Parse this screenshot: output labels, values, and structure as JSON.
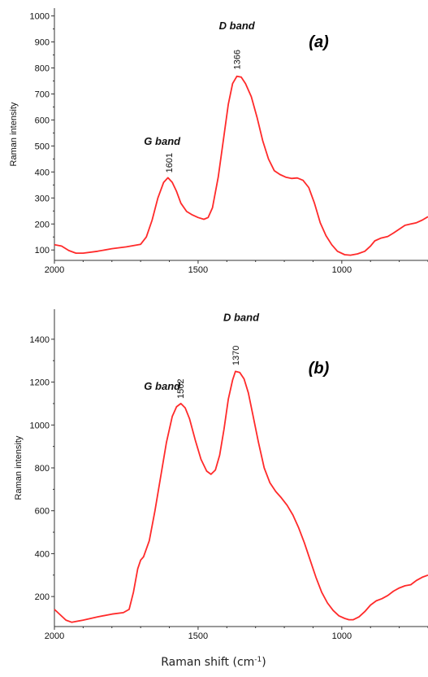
{
  "chart_data": [
    {
      "type": "line",
      "panel_label": "(a)",
      "ylabel": "Raman intensity",
      "xlim": [
        2000,
        700
      ],
      "ylim": [
        60,
        1030
      ],
      "x_ticks": [
        2000,
        1500,
        1000
      ],
      "y_ticks": [
        100,
        200,
        300,
        400,
        500,
        600,
        700,
        800,
        900,
        1000
      ],
      "annotations": [
        {
          "text": "G band",
          "x": 1625,
          "y": 505
        },
        {
          "text": "D band",
          "x": 1365,
          "y": 948
        },
        {
          "text": "(a)",
          "x": 1080,
          "y": 880
        },
        {
          "text": "1601",
          "x": 1601,
          "y": 378
        },
        {
          "text": "1366",
          "x": 1366,
          "y": 775
        }
      ],
      "series": [
        {
          "x": [
            2000,
            1975,
            1950,
            1925,
            1900,
            1850,
            1800,
            1750,
            1700,
            1680,
            1660,
            1640,
            1620,
            1605,
            1590,
            1575,
            1560,
            1540,
            1520,
            1500,
            1480,
            1465,
            1450,
            1430,
            1410,
            1395,
            1380,
            1365,
            1350,
            1335,
            1315,
            1295,
            1275,
            1255,
            1235,
            1215,
            1195,
            1175,
            1155,
            1135,
            1115,
            1095,
            1075,
            1055,
            1035,
            1015,
            990,
            970,
            945,
            920,
            900,
            885,
            865,
            840,
            820,
            800,
            780,
            760,
            740,
            720,
            700
          ],
          "y": [
            120,
            115,
            98,
            88,
            88,
            95,
            105,
            112,
            122,
            150,
            215,
            300,
            360,
            378,
            360,
            325,
            280,
            248,
            235,
            225,
            218,
            225,
            262,
            380,
            540,
            660,
            740,
            768,
            765,
            740,
            690,
            610,
            520,
            450,
            405,
            390,
            380,
            375,
            377,
            368,
            340,
            280,
            205,
            155,
            120,
            95,
            82,
            80,
            85,
            95,
            115,
            135,
            145,
            152,
            165,
            180,
            195,
            200,
            205,
            215,
            228
          ]
        }
      ]
    },
    {
      "type": "line",
      "panel_label": "(b)",
      "ylabel": "Raman intensity",
      "xlim": [
        2000,
        700
      ],
      "ylim": [
        60,
        1540
      ],
      "x_ticks": [
        2000,
        1500,
        1000
      ],
      "y_ticks": [
        200,
        400,
        600,
        800,
        1000,
        1200,
        1400
      ],
      "annotations": [
        {
          "text": "G band",
          "x": 1625,
          "y": 1165
        },
        {
          "text": "D band",
          "x": 1350,
          "y": 1485
        },
        {
          "text": "(b)",
          "x": 1080,
          "y": 1240
        },
        {
          "text": "1562",
          "x": 1562,
          "y": 1100
        },
        {
          "text": "1370",
          "x": 1370,
          "y": 1255
        }
      ],
      "series": [
        {
          "x": [
            2000,
            1980,
            1960,
            1940,
            1900,
            1850,
            1800,
            1760,
            1740,
            1725,
            1710,
            1700,
            1690,
            1670,
            1650,
            1630,
            1610,
            1590,
            1575,
            1560,
            1545,
            1530,
            1510,
            1490,
            1470,
            1455,
            1440,
            1425,
            1410,
            1395,
            1380,
            1370,
            1355,
            1340,
            1325,
            1310,
            1290,
            1270,
            1250,
            1230,
            1210,
            1190,
            1170,
            1150,
            1130,
            1110,
            1090,
            1070,
            1050,
            1030,
            1010,
            990,
            975,
            960,
            940,
            920,
            900,
            880,
            860,
            840,
            820,
            800,
            780,
            760,
            740,
            720,
            700
          ],
          "y": [
            140,
            115,
            90,
            80,
            90,
            105,
            118,
            125,
            140,
            220,
            330,
            370,
            385,
            460,
            600,
            760,
            920,
            1040,
            1085,
            1100,
            1080,
            1030,
            930,
            840,
            785,
            770,
            790,
            860,
            980,
            1120,
            1210,
            1250,
            1245,
            1215,
            1150,
            1050,
            920,
            800,
            730,
            690,
            660,
            625,
            580,
            520,
            450,
            370,
            290,
            220,
            170,
            135,
            110,
            98,
            92,
            92,
            105,
            130,
            160,
            180,
            190,
            205,
            225,
            240,
            250,
            255,
            275,
            290,
            300
          ]
        }
      ]
    }
  ],
  "xlabel": "Raman shift (cm",
  "xlabel_sup": "-1",
  "xlabel_close": ")"
}
